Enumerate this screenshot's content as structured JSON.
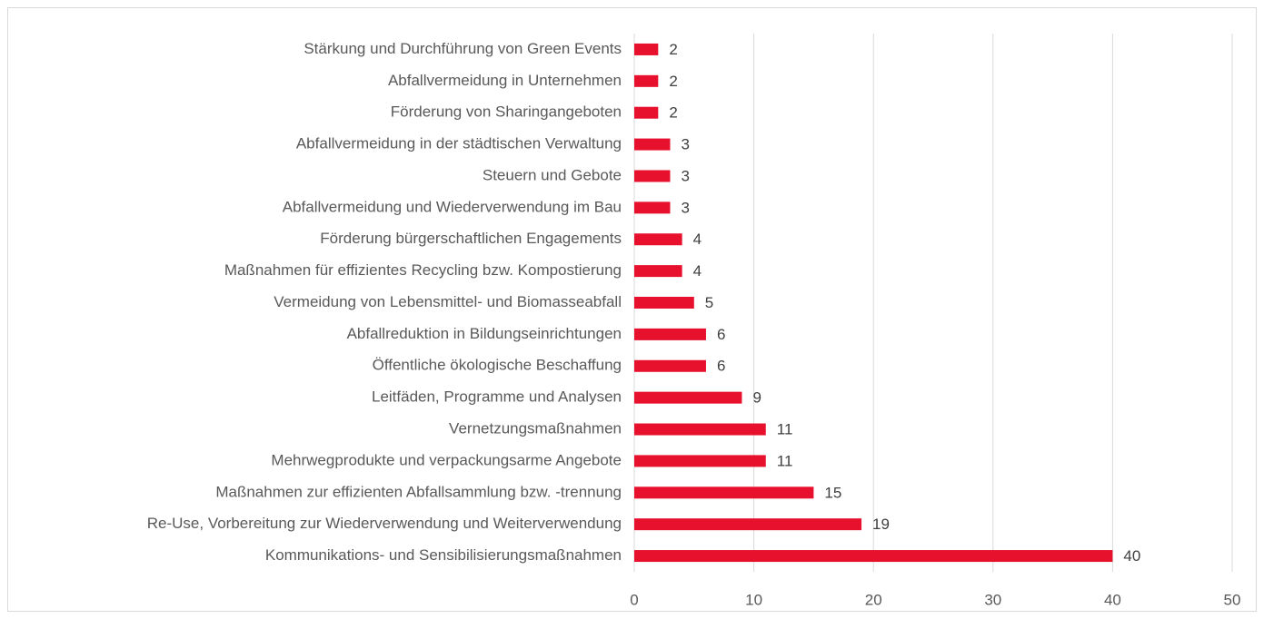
{
  "chart_data": {
    "type": "bar",
    "orientation": "horizontal",
    "categories": [
      "Stärkung und Durchführung von Green Events",
      "Abfallvermeidung in Unternehmen",
      "Förderung von Sharingangeboten",
      "Abfallvermeidung in der städtischen Verwaltung",
      "Steuern und Gebote",
      "Abfallvermeidung und Wiederverwendung im Bau",
      "Förderung bürgerschaftlichen Engagements",
      "Maßnahmen für effizientes Recycling bzw. Kompostierung",
      "Vermeidung von Lebensmittel- und Biomasseabfall",
      "Abfallreduktion in Bildungseinrichtungen",
      "Öffentliche ökologische Beschaffung",
      "Leitfäden, Programme und Analysen",
      "Vernetzungsmaßnahmen",
      "Mehrwegprodukte und verpackungsarme Angebote",
      "Maßnahmen zur effizienten Abfallsammlung bzw. -trennung",
      "Re-Use, Vorbereitung zur Wiederverwendung und Weiterverwendung",
      "Kommunikations- und Sensibilisierungsmaßnahmen"
    ],
    "values": [
      2,
      2,
      2,
      3,
      3,
      3,
      4,
      4,
      5,
      6,
      6,
      9,
      11,
      11,
      15,
      19,
      40
    ],
    "color": "#e8112d",
    "xlim": [
      0,
      50
    ],
    "xticks": [
      0,
      10,
      20,
      30,
      40,
      50
    ],
    "grid": true,
    "data_labels": true
  }
}
